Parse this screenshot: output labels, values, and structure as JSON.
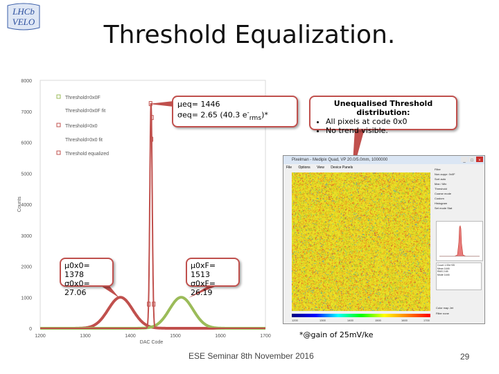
{
  "slide": {
    "title": "Threshold Equalization.",
    "footer": "ESE Seminar 8th November 2016",
    "page_number": "29",
    "footnote": "*@gain of 25mV/ke"
  },
  "logo": {
    "line1": "LHCb",
    "line2": "VELO"
  },
  "callouts": {
    "eq": {
      "mu": "μeq= 1446",
      "sigma_prefix": "σeq= 2.65 (40.3 e",
      "sigma_sub": "rms",
      "sigma_suffix": ")*"
    },
    "x0": {
      "mu": "μ0x0= 1378",
      "sigma": "σ0x0= 27.06"
    },
    "xf": {
      "mu": "μ0xF= 1513",
      "sigma": "σ0xF= 26.19"
    },
    "uneq": {
      "heading": "Unequalised Threshold distribution:",
      "bullets": [
        "All pixels at code 0x0",
        "No trend visible."
      ]
    }
  },
  "colors": {
    "accent": "#c0504d",
    "green": "#9bbb59",
    "red_curve": "#c0504d"
  },
  "chart_data": {
    "type": "line",
    "xlabel": "DAC Code",
    "ylabel": "Counts",
    "xlim": [
      1200,
      1700
    ],
    "ylim": [
      0,
      8000
    ],
    "x_ticks": [
      1200,
      1300,
      1400,
      1500,
      1600,
      1700
    ],
    "y_ticks": [
      0,
      1000,
      2000,
      3000,
      4000,
      5000,
      6000,
      7000,
      8000
    ],
    "legend": [
      "Threshold=0x0F",
      "Threshold=0x0F fit",
      "Threshold=0x0",
      "Threshold=0x0 fit",
      "Threshold equalized"
    ],
    "legend_position": "top-left",
    "series": [
      {
        "name": "Threshold=0x0",
        "color": "#c0504d",
        "mean": 1378,
        "sigma": 27.06,
        "peak": 1000
      },
      {
        "name": "Threshold=0x0F",
        "color": "#9bbb59",
        "mean": 1513,
        "sigma": 26.19,
        "peak": 1000
      },
      {
        "name": "Threshold equalized",
        "color": "#c0504d",
        "mean": 1446,
        "sigma": 2.65,
        "peak": 7250
      }
    ]
  },
  "app_window": {
    "title": "Pixelman - Medipix Quad, VP 20.0/5.0mm, 1000000",
    "menu": [
      "File",
      "Options",
      "View",
      "Device Panels"
    ],
    "colorbar_ticks": [
      "1200",
      "1300",
      "1400",
      "1500",
      "1600",
      "1700"
    ],
    "side_rows": [
      "Filter",
      "Non-suppr. 0x0F",
      "Sort   auto",
      "Max / Min",
      "Threshold",
      "Coarse mode",
      "Custom",
      "Histogram",
      "Set mode  Stat"
    ],
    "stats_rows": [
      "Count   1.00e+05",
      "Mean    1446",
      "RMS     2.65",
      "Mode    1446"
    ],
    "bottom_rows": [
      "Color map   Jet",
      "Filter   none"
    ]
  }
}
